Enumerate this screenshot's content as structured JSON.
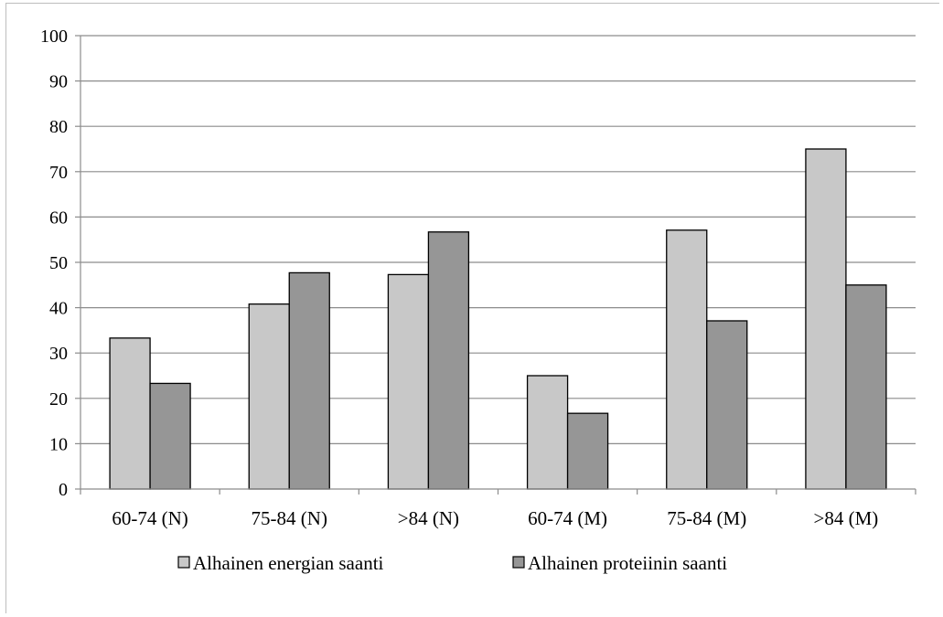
{
  "chart_data": {
    "type": "bar",
    "categories": [
      "60-74 (N)",
      "75-84 (N)",
      ">84  (N)",
      "60-74 (M)",
      "75-84  (M)",
      ">84 (M)"
    ],
    "series": [
      {
        "name": "Alhainen energian saanti",
        "values": [
          33.3,
          40.8,
          47.3,
          25.0,
          57.1,
          75.0
        ],
        "color": "#c8c8c8"
      },
      {
        "name": "Alhainen proteiinin saanti",
        "values": [
          23.3,
          47.7,
          56.7,
          16.7,
          37.1,
          45.0
        ],
        "color": "#969696"
      }
    ],
    "yticks": [
      "0",
      "10",
      "20",
      "30",
      "40",
      "50",
      "60",
      "70",
      "80",
      "90",
      "100"
    ],
    "ylim": [
      0,
      100
    ],
    "grid": true,
    "legend_position": "bottom",
    "title": "",
    "xlabel": "",
    "ylabel": ""
  }
}
